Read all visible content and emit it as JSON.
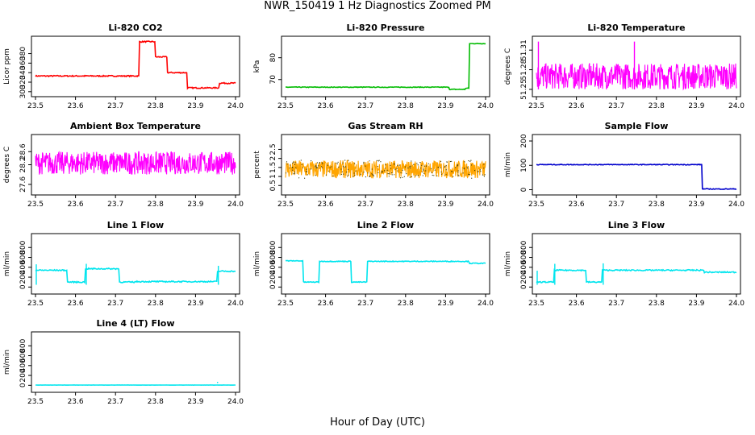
{
  "figure": {
    "title": "NWR_150419  1 Hz Diagnostics Zoomed PM",
    "xlabel": "Hour of Day (UTC)"
  },
  "chart_data": [
    {
      "type": "line",
      "title": "Li-820 CO2",
      "ylabel": "Licor ppm",
      "color": "#ff0000",
      "xlim": [
        23.5,
        24.0
      ],
      "ylim": [
        298,
        408
      ],
      "xticks": [
        "23.5",
        "23.6",
        "23.7",
        "23.8",
        "23.9",
        "24.0"
      ],
      "yticks": [
        300,
        320,
        340,
        360,
        380
      ],
      "noise": 1.2,
      "steps": [
        [
          23.5,
          333
        ],
        [
          23.76,
          405
        ],
        [
          23.8,
          373
        ],
        [
          23.83,
          340
        ],
        [
          23.88,
          308
        ],
        [
          23.96,
          318
        ],
        [
          24.0,
          318
        ]
      ],
      "spikes": []
    },
    {
      "type": "line",
      "title": "Li-820 Pressure",
      "ylabel": "kPa",
      "color": "#00bb00",
      "xlim": [
        23.5,
        24.0
      ],
      "ylim": [
        64,
        88
      ],
      "xticks": [
        "23.5",
        "23.6",
        "23.7",
        "23.8",
        "23.9",
        "24.0"
      ],
      "yticks": [
        70,
        80
      ],
      "noise": 0.15,
      "steps": [
        [
          23.5,
          66.5
        ],
        [
          23.91,
          65.5
        ],
        [
          23.95,
          66
        ],
        [
          23.96,
          86.5
        ],
        [
          24.0,
          86.5
        ]
      ],
      "spikes": []
    },
    {
      "type": "noise",
      "title": "Li-820 Temperature",
      "ylabel": "degrees C",
      "color": "#ff00ff",
      "xlim": [
        23.5,
        24.0
      ],
      "ylim": [
        51.245,
        51.325
      ],
      "xticks": [
        "23.5",
        "23.6",
        "23.7",
        "23.8",
        "23.9",
        "24.0"
      ],
      "yticks": [
        51.25,
        51.28,
        51.31
      ],
      "ytickLabels": [
        "51.25",
        "51.28",
        "51.31"
      ],
      "low": 51.25,
      "high": 51.29,
      "spikes": [
        [
          23.505,
          51.323
        ],
        [
          23.745,
          51.323
        ]
      ]
    },
    {
      "type": "noise",
      "title": "Ambient Box Temperature",
      "ylabel": "degrees C",
      "color": "#ff00ff",
      "xlim": [
        23.5,
        24.0
      ],
      "ylim": [
        27.4,
        29.0
      ],
      "xticks": [
        "23.5",
        "23.6",
        "23.7",
        "23.8",
        "23.9",
        "24.0"
      ],
      "yticks": [
        27.6,
        28.2,
        28.6
      ],
      "ytickLabels": [
        "27.6",
        "28.2",
        "28.6"
      ],
      "low": 27.9,
      "high": 28.6,
      "spikes": []
    },
    {
      "type": "noise",
      "title": "Gas Stream RH",
      "ylabel": "percent",
      "color": "#ffa500",
      "marker": "#333300",
      "xlim": [
        23.5,
        24.0
      ],
      "ylim": [
        0.2,
        3.1
      ],
      "xticks": [
        "23.5",
        "23.6",
        "23.7",
        "23.8",
        "23.9",
        "24.0"
      ],
      "yticks": [
        0.5,
        1.0,
        1.5,
        2.0,
        2.5
      ],
      "ytickLabels": [
        "0.5",
        "1",
        "1.5",
        "2",
        "2.5"
      ],
      "low": 0.9,
      "high": 1.9,
      "spikes": []
    },
    {
      "type": "line",
      "title": "Sample Flow",
      "ylabel": "ml/min",
      "color": "#0000cc",
      "xlim": [
        23.5,
        24.0
      ],
      "ylim": [
        -5,
        210
      ],
      "xticks": [
        "23.5",
        "23.6",
        "23.7",
        "23.8",
        "23.9",
        "24.0"
      ],
      "yticks": [
        0,
        100,
        200
      ],
      "noise": 1.5,
      "steps": [
        [
          23.5,
          103
        ],
        [
          23.915,
          3
        ],
        [
          24.0,
          3
        ]
      ],
      "spikes": []
    },
    {
      "type": "line",
      "title": "Line 1 Flow",
      "ylabel": "ml/min",
      "color": "#00e5ee",
      "xlim": [
        23.5,
        24.0
      ],
      "ylim": [
        -60,
        1000
      ],
      "xticks": [
        "23.5",
        "23.6",
        "23.7",
        "23.8",
        "23.9",
        "24.0"
      ],
      "yticks": [
        0,
        200,
        400,
        600,
        800
      ],
      "noise": 12,
      "steps": [
        [
          23.5,
          340
        ],
        [
          23.58,
          100
        ],
        [
          23.625,
          370
        ],
        [
          23.71,
          100
        ],
        [
          23.75,
          110
        ],
        [
          23.955,
          320
        ],
        [
          24.0,
          320
        ]
      ],
      "spikes": [
        [
          23.502,
          460
        ],
        [
          23.627,
          470
        ],
        [
          23.957,
          430
        ]
      ]
    },
    {
      "type": "line",
      "title": "Line 2 Flow",
      "ylabel": "ml/min",
      "color": "#00e5ee",
      "xlim": [
        23.5,
        24.0
      ],
      "ylim": [
        -60,
        1000
      ],
      "xticks": [
        "23.5",
        "23.6",
        "23.7",
        "23.8",
        "23.9",
        "24.0"
      ],
      "yticks": [
        0,
        200,
        400,
        600,
        800
      ],
      "noise": 8,
      "steps": [
        [
          23.5,
          530
        ],
        [
          23.545,
          100
        ],
        [
          23.585,
          520
        ],
        [
          23.665,
          100
        ],
        [
          23.705,
          520
        ],
        [
          23.96,
          480
        ],
        [
          24.0,
          480
        ]
      ],
      "spikes": []
    },
    {
      "type": "line",
      "title": "Line 3 Flow",
      "ylabel": "ml/min",
      "color": "#00e5ee",
      "xlim": [
        23.5,
        24.0
      ],
      "ylim": [
        -60,
        1000
      ],
      "xticks": [
        "23.5",
        "23.6",
        "23.7",
        "23.8",
        "23.9",
        "24.0"
      ],
      "yticks": [
        0,
        200,
        400,
        600,
        800
      ],
      "noise": 12,
      "steps": [
        [
          23.5,
          100
        ],
        [
          23.545,
          340
        ],
        [
          23.625,
          100
        ],
        [
          23.665,
          340
        ],
        [
          23.92,
          300
        ],
        [
          24.0,
          300
        ]
      ],
      "spikes": [
        [
          23.502,
          330
        ],
        [
          23.546,
          470
        ],
        [
          23.667,
          480
        ]
      ]
    },
    {
      "type": "line",
      "title": "Line 4 (LT) Flow",
      "ylabel": "ml/min",
      "color": "#00e5ee",
      "xlim": [
        23.5,
        24.0
      ],
      "ylim": [
        -60,
        1000
      ],
      "xticks": [
        "23.5",
        "23.6",
        "23.7",
        "23.8",
        "23.9",
        "24.0"
      ],
      "yticks": [
        0,
        200,
        400,
        600,
        800
      ],
      "noise": 2,
      "steps": [
        [
          23.5,
          5
        ],
        [
          24.0,
          5
        ]
      ],
      "spikes": [
        [
          23.955,
          70
        ]
      ]
    }
  ]
}
